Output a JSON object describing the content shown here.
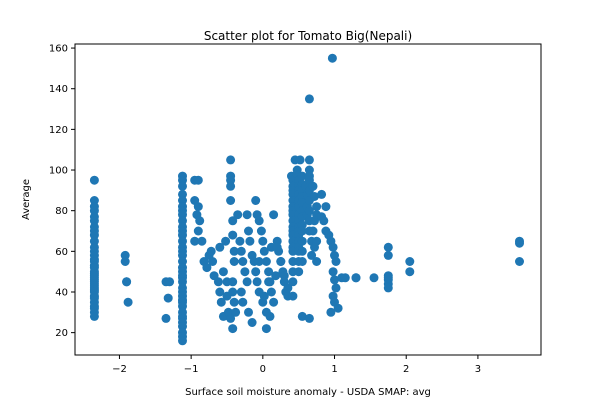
{
  "chart_data": {
    "type": "scatter",
    "title": "Scatter plot for Tomato Big(Nepali)",
    "xlabel": "Surface soil moisture anomaly  - USDA SMAP: avg",
    "ylabel": "Average",
    "xlim": [
      -2.62,
      3.88
    ],
    "ylim": [
      9,
      162
    ],
    "xticks": [
      -2,
      -1,
      0,
      1,
      2,
      3
    ],
    "xtick_labels": [
      "−2",
      "−1",
      "0",
      "1",
      "2",
      "3"
    ],
    "yticks": [
      20,
      40,
      60,
      80,
      100,
      120,
      140,
      160
    ],
    "ytick_labels": [
      "20",
      "40",
      "60",
      "80",
      "100",
      "120",
      "140",
      "160"
    ],
    "grid": false,
    "legend": "none",
    "marker_color": "#1f77b4",
    "series": [
      {
        "x": [
          -2.35,
          -2.35,
          -2.35,
          -2.35,
          -2.35,
          -2.35,
          -2.35,
          -2.35,
          -2.35,
          -2.35,
          -2.35,
          -2.35,
          -2.35,
          -2.35,
          -2.35,
          -2.35,
          -2.35,
          -2.35,
          -2.35,
          -2.35,
          -2.35,
          -2.35,
          -2.35,
          -2.35,
          -2.35,
          -2.35,
          -2.35,
          -2.35,
          -2.35,
          -2.35,
          -2.35,
          -2.35,
          -2.35,
          -2.35,
          -2.35,
          -1.92,
          -1.92,
          -1.9,
          -1.9,
          -1.88,
          -1.35,
          -1.32,
          -1.35,
          -1.3,
          -1.12,
          -1.12,
          -1.12,
          -1.12,
          -1.12,
          -1.12,
          -1.12,
          -1.12,
          -1.12,
          -1.12,
          -1.12,
          -1.12,
          -1.12,
          -1.12,
          -1.12,
          -1.12,
          -1.12,
          -1.12,
          -1.12,
          -1.12,
          -1.12,
          -1.12,
          -1.12,
          -1.12,
          -1.12,
          -1.12,
          -1.12,
          -1.12,
          -1.12,
          -1.12,
          -1.12,
          -1.12,
          -1.12,
          -1.12,
          -1.12,
          -1.12,
          -0.95,
          -0.95,
          -0.9,
          -0.9,
          -0.92,
          -0.95,
          -0.9,
          -0.88,
          -0.85,
          -0.82,
          -0.78,
          -0.75,
          -0.72,
          -0.7,
          -0.68,
          -0.62,
          -0.6,
          -0.6,
          -0.58,
          -0.55,
          -0.55,
          -0.52,
          -0.5,
          -0.5,
          -0.48,
          -0.45,
          -0.45,
          -0.45,
          -0.45,
          -0.45,
          -0.42,
          -0.42,
          -0.4,
          -0.4,
          -0.42,
          -0.42,
          -0.4,
          -0.38,
          -0.45,
          -0.42,
          -0.35,
          -0.32,
          -0.3,
          -0.28,
          -0.25,
          -0.22,
          -0.3,
          -0.28,
          -0.22,
          -0.2,
          -0.18,
          -0.15,
          -0.12,
          -0.1,
          -0.08,
          -0.05,
          -0.2,
          -0.15,
          -0.1,
          -0.08,
          -0.05,
          -0.02,
          0.0,
          0.02,
          0.05,
          0.08,
          0.1,
          0.12,
          0.15,
          0.18,
          -0.05,
          0.02,
          0.0,
          0.05,
          0.1,
          0.05,
          0.08,
          0.12,
          0.15,
          0.2,
          0.22,
          0.25,
          0.28,
          0.3,
          0.32,
          0.35,
          0.2,
          0.25,
          0.3,
          0.35,
          0.4,
          0.42,
          0.42,
          0.42,
          0.42,
          0.42,
          0.42,
          0.42,
          0.42,
          0.42,
          0.42,
          0.42,
          0.42,
          0.42,
          0.42,
          0.42,
          0.42,
          0.42,
          0.42,
          0.42,
          0.45,
          0.48,
          0.48,
          0.5,
          0.5,
          0.5,
          0.5,
          0.5,
          0.5,
          0.5,
          0.5,
          0.5,
          0.5,
          0.5,
          0.5,
          0.5,
          0.5,
          0.5,
          0.5,
          0.52,
          0.55,
          0.55,
          0.55,
          0.55,
          0.55,
          0.55,
          0.55,
          0.55,
          0.55,
          0.55,
          0.55,
          0.55,
          0.55,
          0.6,
          0.62,
          0.62,
          0.62,
          0.65,
          0.65,
          0.65,
          0.65,
          0.65,
          0.65,
          0.65,
          0.65,
          0.65,
          0.65,
          0.68,
          0.7,
          0.72,
          0.75,
          0.75,
          0.72,
          0.7,
          0.75,
          0.72,
          0.68,
          0.75,
          0.82,
          0.88,
          0.82,
          0.85,
          0.88,
          0.92,
          0.95,
          0.98,
          1.0,
          1.02,
          0.98,
          1.0,
          1.02,
          0.98,
          1.0,
          1.05,
          0.95,
          1.1,
          1.15,
          1.3,
          1.3,
          1.55,
          1.75,
          1.75,
          1.75,
          1.75,
          1.75,
          1.75,
          1.75,
          2.05,
          2.05,
          3.58,
          3.58,
          3.58,
          0.97,
          0.65
        ],
        "y": [
          95,
          85,
          82,
          80,
          77,
          75,
          72,
          70,
          68,
          65,
          62,
          60,
          58,
          56,
          55,
          53,
          52,
          50,
          49,
          48,
          47,
          46,
          45,
          44,
          43,
          42,
          41,
          40,
          38,
          37,
          35,
          33,
          32,
          30,
          28,
          58,
          55,
          45,
          45,
          35,
          45,
          37,
          27,
          45,
          97,
          95,
          92,
          88,
          85,
          82,
          80,
          78,
          75,
          72,
          70,
          68,
          65,
          62,
          60,
          58,
          55,
          52,
          50,
          48,
          47,
          45,
          42,
          40,
          38,
          36,
          35,
          33,
          30,
          28,
          27,
          25,
          23,
          20,
          18,
          16,
          95,
          85,
          95,
          82,
          78,
          65,
          70,
          75,
          65,
          55,
          52,
          58,
          60,
          55,
          48,
          45,
          62,
          40,
          35,
          28,
          50,
          65,
          45,
          38,
          30,
          105,
          97,
          95,
          92,
          85,
          75,
          68,
          60,
          55,
          45,
          40,
          35,
          30,
          27,
          22,
          78,
          65,
          60,
          55,
          50,
          45,
          40,
          35,
          78,
          70,
          65,
          58,
          55,
          50,
          45,
          40,
          30,
          25,
          85,
          78,
          75,
          70,
          65,
          60,
          55,
          50,
          45,
          40,
          35,
          48,
          55,
          38,
          35,
          30,
          28,
          22,
          45,
          62,
          78,
          65,
          60,
          55,
          50,
          45,
          40,
          38,
          62,
          55,
          48,
          42,
          97,
          95,
          92,
          90,
          88,
          85,
          82,
          80,
          78,
          75,
          72,
          70,
          68,
          65,
          62,
          60,
          55,
          50,
          45,
          38,
          105,
          100,
          98,
          95,
          92,
          90,
          88,
          85,
          82,
          78,
          75,
          72,
          70,
          68,
          65,
          62,
          60,
          55,
          50,
          105,
          97,
          93,
          90,
          87,
          84,
          80,
          77,
          73,
          70,
          65,
          60,
          55,
          28,
          92,
          88,
          82,
          78,
          135,
          105,
          100,
          97,
          95,
          90,
          85,
          80,
          75,
          70,
          65,
          92,
          87,
          82,
          78,
          75,
          70,
          65,
          62,
          58,
          55,
          88,
          82,
          77,
          75,
          70,
          68,
          65,
          62,
          58,
          55,
          50,
          46,
          42,
          38,
          35,
          32,
          30,
          47,
          47,
          47,
          47,
          47,
          62,
          58,
          48,
          46,
          44,
          42,
          47,
          55,
          50,
          65,
          64,
          55,
          155,
          27
        ]
      }
    ]
  }
}
